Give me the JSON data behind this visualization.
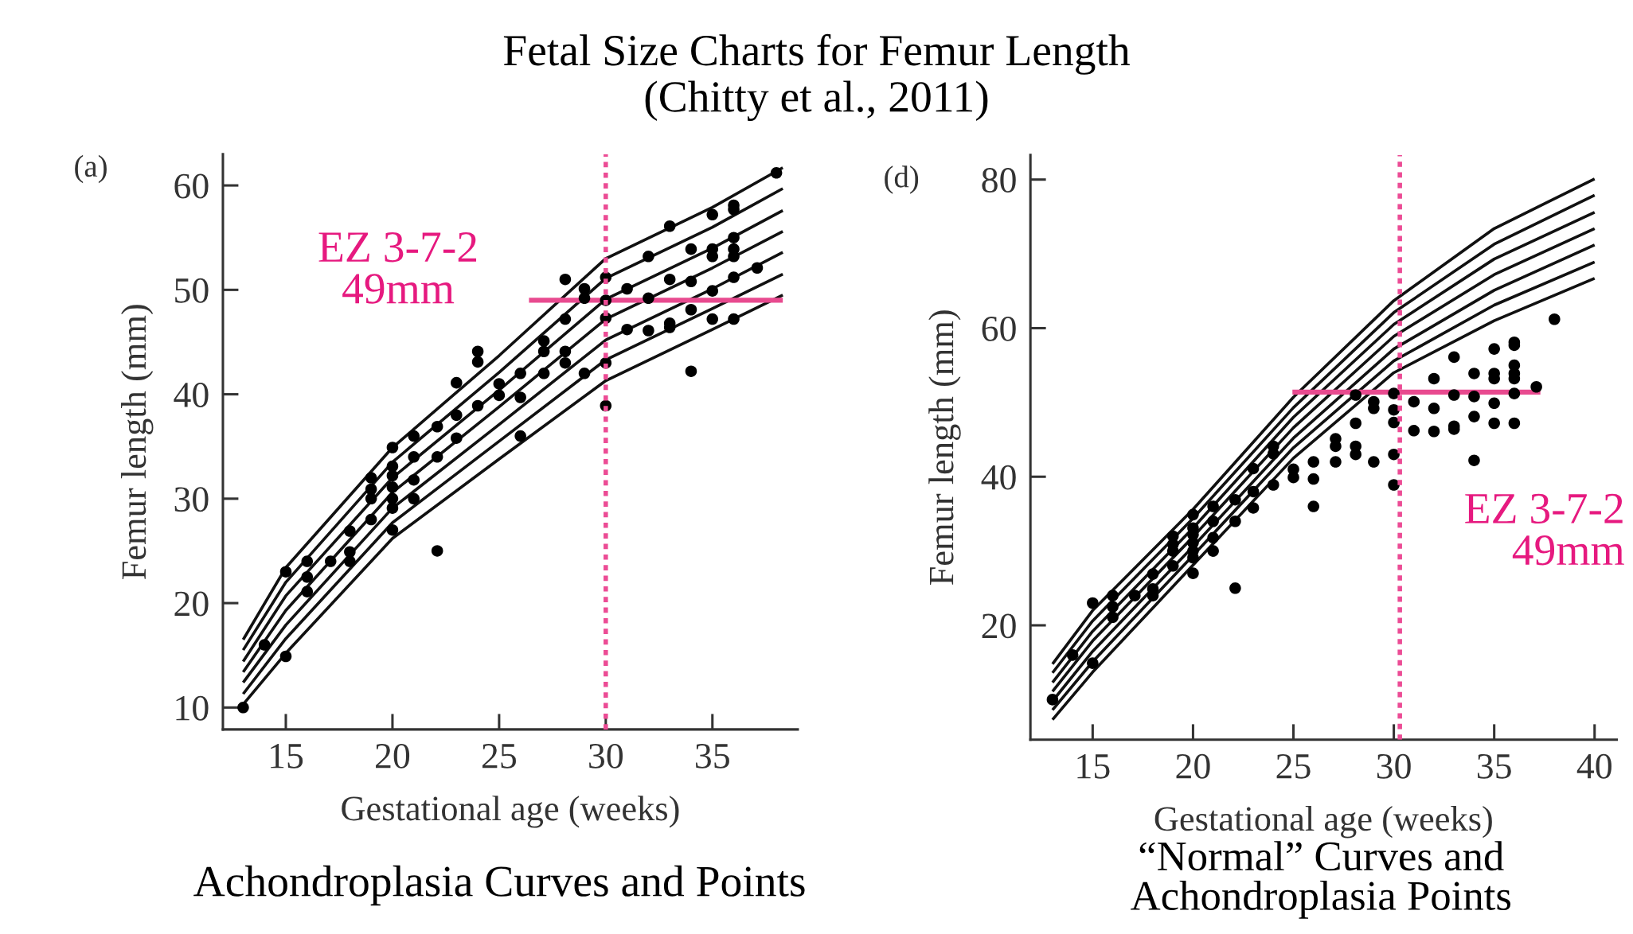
{
  "chart_data": [
    {
      "type": "line",
      "title": "Fetal Size Charts for Femur Length\n(Chitty et al., 2011)",
      "xlabel": "Gestational age (weeks)",
      "ylabel": "Femur length (mm)",
      "annotations": [
        "(a)",
        "EZ 3-7-2\n49mm",
        "Achondroplasia Curves and Points"
      ],
      "xlim": [
        12.05,
        39.0
      ],
      "ylim": [
        7.9,
        63
      ],
      "xticks": [
        15,
        20,
        25,
        30,
        35
      ],
      "yticks": [
        10,
        20,
        30,
        40,
        50,
        60
      ],
      "ref_lines": [
        {
          "axis": "x",
          "value": 30,
          "label": null,
          "color": "#ec4c95",
          "line_style": "dotted"
        }
      ],
      "series": [
        {
          "color": "#111111",
          "x": [
            13,
            15,
            20,
            25,
            30,
            35,
            38.3
          ],
          "values": [
            16.5,
            23.4,
            34.9,
            43.7,
            53.0,
            57.9,
            61.7
          ]
        },
        {
          "color": "#111111",
          "x": [
            13,
            15,
            20,
            25,
            30,
            35,
            38.3
          ],
          "values": [
            15.5,
            22.0,
            33.5,
            42.1,
            51.1,
            56.0,
            59.7
          ]
        },
        {
          "color": "#111111",
          "x": [
            13,
            15,
            20,
            25,
            30,
            35,
            38.3
          ],
          "values": [
            14.4,
            20.7,
            32.0,
            40.4,
            49.1,
            54.0,
            57.6
          ]
        },
        {
          "color": "#111111",
          "x": [
            13,
            15,
            20,
            25,
            30,
            35,
            38.3
          ],
          "values": [
            13.4,
            19.3,
            30.6,
            38.8,
            47.2,
            52.1,
            55.6
          ]
        },
        {
          "color": "#111111",
          "x": [
            13,
            15,
            20,
            25,
            30,
            35,
            38.3
          ],
          "values": [
            12.4,
            17.9,
            29.1,
            37.1,
            45.2,
            50.1,
            53.6
          ]
        },
        {
          "color": "#111111",
          "x": [
            13,
            15,
            20,
            25,
            30,
            35,
            38.3
          ],
          "values": [
            11.3,
            16.6,
            27.7,
            35.5,
            43.3,
            48.2,
            51.5
          ]
        },
        {
          "color": "#111111",
          "x": [
            13,
            15,
            20,
            25,
            30,
            35,
            38.3
          ],
          "values": [
            10.3,
            15.2,
            26.2,
            33.8,
            41.3,
            46.2,
            49.5
          ]
        },
        {
          "type": "scatter",
          "color": "#000000",
          "marker": "circle",
          "x": [
            13.0,
            14.0,
            15.0,
            15.0,
            16.0,
            16.0,
            16.0,
            17.1,
            18.0,
            18.0,
            18.0,
            19.0,
            19.0,
            19.0,
            19.0,
            20,
            20,
            20,
            20,
            20,
            20,
            20,
            21,
            21,
            21,
            21,
            22.1,
            22.1,
            22.1,
            23.0,
            23.0,
            23.0,
            24.0,
            24.0,
            24.0,
            25,
            25,
            26,
            26,
            26,
            27.1,
            27.1,
            27.1,
            28.1,
            28.1,
            28.1,
            28.1,
            29.0,
            29.0,
            29.0,
            30,
            30,
            30,
            30,
            30,
            31,
            31,
            32,
            32,
            32,
            33,
            33,
            33,
            33,
            34,
            34,
            34,
            34,
            35,
            35,
            35,
            35,
            35,
            36,
            36,
            36,
            36,
            36,
            36,
            36,
            37.1,
            38
          ],
          "values": [
            10.0,
            16.0,
            14.9,
            23.0,
            24.0,
            22.5,
            21.1,
            24.0,
            26.9,
            24.9,
            24.0,
            32.0,
            30.9,
            30.0,
            28.0,
            33.1,
            32.2,
            31.1,
            30.0,
            29.1,
            27.0,
            34.9,
            36.0,
            34.0,
            31.8,
            30.0,
            36.9,
            34.0,
            25.0,
            41.1,
            38.0,
            35.8,
            44.1,
            43.1,
            38.9,
            41.0,
            39.9,
            42.0,
            39.7,
            36.0,
            45.1,
            44.1,
            42.0,
            51.0,
            47.2,
            44.1,
            43.0,
            50.1,
            49.2,
            42.0,
            51.2,
            49.0,
            47.3,
            43.0,
            38.9,
            50.1,
            46.2,
            53.2,
            49.2,
            46.1,
            56.1,
            51.0,
            46.8,
            46.4,
            53.9,
            50.8,
            48.1,
            42.2,
            57.2,
            53.9,
            53.2,
            49.9,
            47.2,
            58.1,
            57.7,
            55.0,
            53.9,
            53.2,
            51.2,
            47.2,
            52.1,
            61.2
          ]
        },
        {
          "type": "line",
          "color": "#e84a8f",
          "x": [
            26.4,
            38.3
          ],
          "values": [
            49,
            49
          ]
        }
      ]
    },
    {
      "type": "line",
      "xlabel": "Gestational age (weeks)",
      "ylabel": "Femur length (mm)",
      "annotations": [
        "(d)",
        "EZ 3-7-2\n49mm",
        "“Normal” Curves and\nAchondroplasia Points"
      ],
      "xlim": [
        11.9,
        41.1
      ],
      "ylim": [
        4.6,
        83.3
      ],
      "xticks": [
        15,
        20,
        25,
        30,
        35,
        40
      ],
      "yticks": [
        20,
        40,
        60,
        80
      ],
      "ref_lines": [
        {
          "axis": "x",
          "value": 30.3,
          "label": null,
          "color": "#ec4c95",
          "line_style": "dotted"
        }
      ],
      "series": [
        {
          "color": "#111111",
          "x": [
            13,
            15,
            20,
            25,
            30,
            35,
            40
          ],
          "values": [
            14.8,
            22.0,
            35.6,
            50.7,
            63.7,
            73.4,
            80.1
          ]
        },
        {
          "color": "#111111",
          "x": [
            13,
            15,
            20,
            25,
            30,
            35,
            40
          ],
          "values": [
            13.6,
            20.6,
            34.4,
            49.3,
            62.1,
            71.3,
            77.9
          ]
        },
        {
          "color": "#111111",
          "x": [
            13,
            15,
            20,
            25,
            30,
            35,
            40
          ],
          "values": [
            12.3,
            19.2,
            33.1,
            48.0,
            60.5,
            69.3,
            75.6
          ]
        },
        {
          "color": "#111111",
          "x": [
            13,
            15,
            20,
            25,
            30,
            35,
            40
          ],
          "values": [
            11.1,
            17.9,
            31.9,
            46.6,
            58.9,
            67.2,
            73.4
          ]
        },
        {
          "color": "#111111",
          "x": [
            13,
            15,
            20,
            25,
            30,
            35,
            40
          ],
          "values": [
            9.8,
            16.5,
            30.6,
            45.2,
            57.2,
            65.1,
            71.2
          ]
        },
        {
          "color": "#111111",
          "x": [
            13,
            15,
            20,
            25,
            30,
            35,
            40
          ],
          "values": [
            8.6,
            15.1,
            29.4,
            43.9,
            55.6,
            63.1,
            68.9
          ]
        },
        {
          "color": "#111111",
          "x": [
            13,
            15,
            20,
            25,
            30,
            35,
            40
          ],
          "values": [
            7.3,
            13.7,
            28.1,
            42.5,
            54.0,
            61.0,
            66.7
          ]
        },
        {
          "type": "scatter",
          "color": "#000000",
          "marker": "circle",
          "x": [
            13.0,
            14.0,
            15.0,
            15.0,
            16.0,
            16.0,
            16.0,
            17.1,
            18.0,
            18.0,
            18.0,
            19.0,
            19.0,
            19.0,
            19.0,
            20,
            20,
            20,
            20,
            20,
            20,
            20,
            21,
            21,
            21,
            21,
            22.1,
            22.1,
            22.1,
            23.0,
            23.0,
            23.0,
            24.0,
            24.0,
            24.0,
            25,
            25,
            26,
            26,
            26,
            27.1,
            27.1,
            27.1,
            28.1,
            28.1,
            28.1,
            28.1,
            29.0,
            29.0,
            29.0,
            30,
            30,
            30,
            30,
            30,
            31,
            31,
            32,
            32,
            32,
            33,
            33,
            33,
            33,
            34,
            34,
            34,
            34,
            35,
            35,
            35,
            35,
            35,
            36,
            36,
            36,
            36,
            36,
            36,
            36,
            37.1,
            38
          ],
          "values": [
            10.0,
            16.0,
            14.9,
            23.0,
            24.0,
            22.5,
            21.1,
            24.0,
            26.9,
            24.9,
            24.0,
            32.0,
            30.9,
            30.0,
            28.0,
            33.1,
            32.2,
            31.1,
            30.0,
            29.1,
            27.0,
            34.9,
            36.0,
            34.0,
            31.8,
            30.0,
            36.9,
            34.0,
            25.0,
            41.1,
            38.0,
            35.8,
            44.1,
            43.1,
            38.9,
            41.0,
            39.9,
            42.0,
            39.7,
            36.0,
            45.1,
            44.1,
            42.0,
            51.0,
            47.2,
            44.1,
            43.0,
            50.1,
            49.2,
            42.0,
            51.2,
            49.0,
            47.3,
            43.0,
            38.9,
            50.1,
            46.2,
            53.2,
            49.2,
            46.1,
            56.1,
            51.0,
            46.8,
            46.4,
            53.9,
            50.8,
            48.1,
            42.2,
            57.2,
            53.9,
            53.2,
            49.9,
            47.2,
            58.1,
            57.7,
            55.0,
            53.9,
            53.2,
            51.2,
            47.2,
            52.1,
            61.2
          ]
        },
        {
          "type": "line",
          "color": "#e84a8f",
          "x": [
            24.95,
            37.3
          ],
          "values": [
            51.4,
            51.4
          ]
        }
      ]
    }
  ]
}
